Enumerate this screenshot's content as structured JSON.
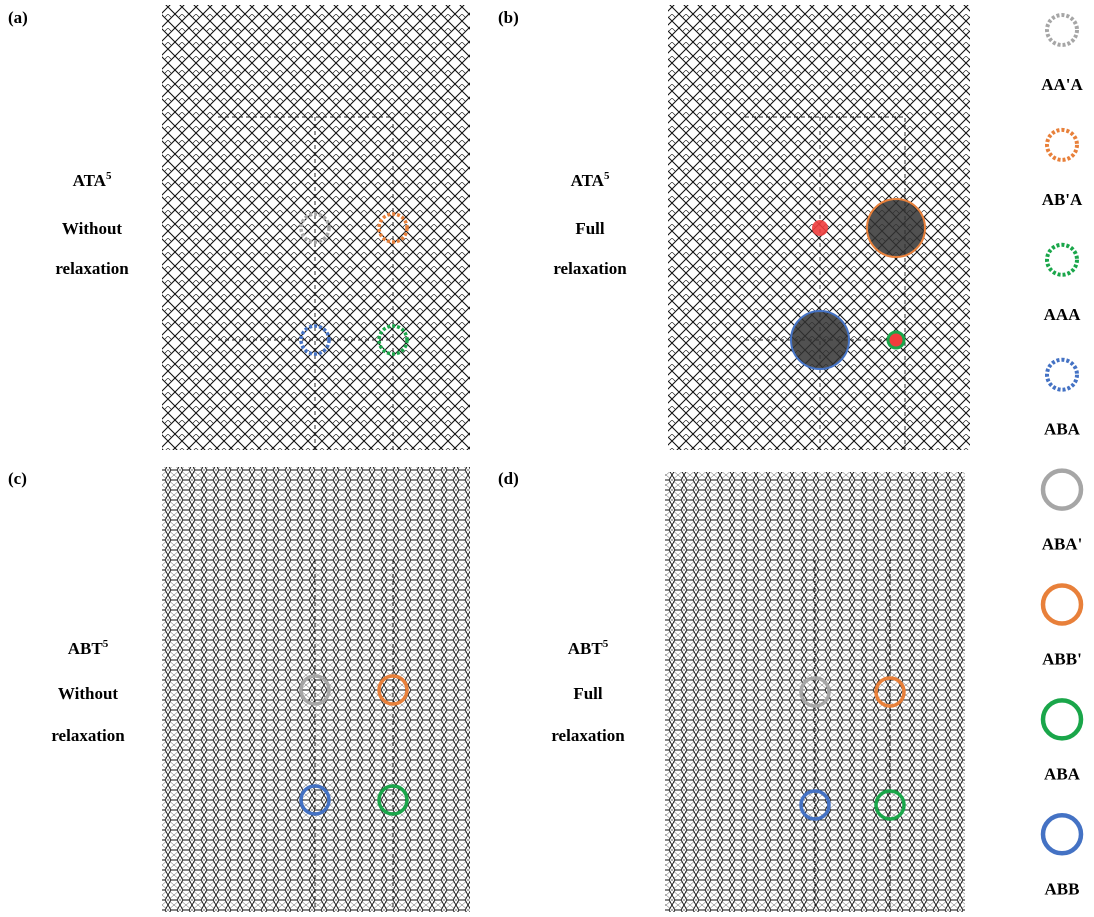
{
  "panels": [
    {
      "label": "(a)",
      "structure": "ATA",
      "superscript": "5",
      "condition": [
        "Without",
        "relaxation"
      ]
    },
    {
      "label": "(b)",
      "structure": "ATA",
      "superscript": "5",
      "condition": [
        "Full",
        "relaxation"
      ]
    },
    {
      "label": "(c)",
      "structure": "ABT",
      "superscript": "5",
      "condition": [
        "Without",
        "relaxation"
      ]
    },
    {
      "label": "(d)",
      "structure": "ABT",
      "superscript": "5",
      "condition": [
        "Full",
        "relaxation"
      ]
    }
  ],
  "legend": [
    {
      "label": "AA'A",
      "color": "#a6a6a6",
      "style": "dashed"
    },
    {
      "label": "AB'A",
      "color": "#e8803a",
      "style": "dashed"
    },
    {
      "label": "AAA",
      "color": "#1aa64a",
      "style": "dashed"
    },
    {
      "label": "ABA",
      "color": "#4472c4",
      "style": "dashed"
    },
    {
      "label": "ABA'",
      "color": "#a6a6a6",
      "style": "solid"
    },
    {
      "label": "ABB'",
      "color": "#e8803a",
      "style": "solid"
    },
    {
      "label": "ABA",
      "color": "#1aa64a",
      "style": "solid"
    },
    {
      "label": "ABB",
      "color": "#4472c4",
      "style": "solid"
    }
  ]
}
